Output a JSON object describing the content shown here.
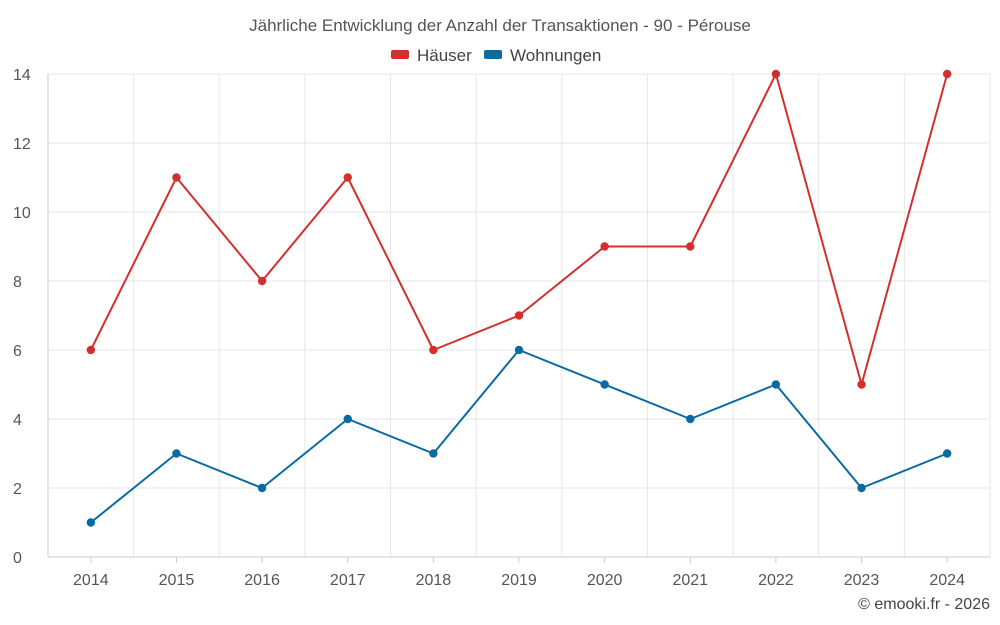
{
  "chart_data": {
    "type": "line",
    "title": "Jährliche Entwicklung der Anzahl der Transaktionen - 90 - Pérouse",
    "categories": [
      "2014",
      "2015",
      "2016",
      "2017",
      "2018",
      "2019",
      "2020",
      "2021",
      "2022",
      "2023",
      "2024"
    ],
    "series": [
      {
        "name": "Häuser",
        "color": "#d32f2f",
        "values": [
          6,
          11,
          8,
          11,
          6,
          7,
          9,
          9,
          14,
          5,
          14
        ]
      },
      {
        "name": "Wohnungen",
        "color": "#0a6aa1",
        "values": [
          1,
          3,
          2,
          4,
          3,
          6,
          5,
          4,
          5,
          2,
          3
        ]
      }
    ],
    "ylim": [
      0,
      14
    ],
    "yticks": [
      "0",
      "2",
      "4",
      "6",
      "8",
      "10",
      "12",
      "14"
    ],
    "xlabel": "",
    "ylabel": "",
    "grid": true,
    "legend_position": "top-center"
  },
  "credit": "© emooki.fr - 2026"
}
